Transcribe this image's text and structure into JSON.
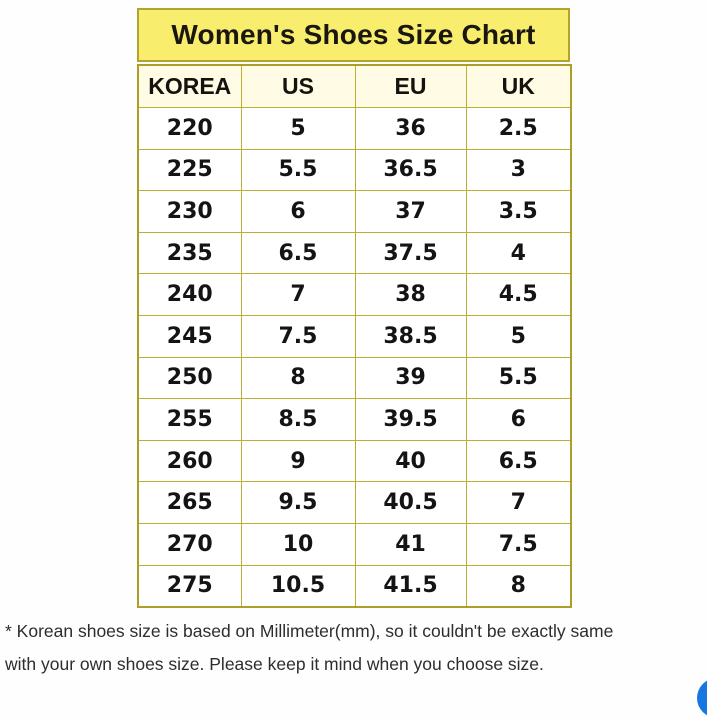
{
  "table": {
    "title": "Women's Shoes Size Chart",
    "columns": [
      "KOREA",
      "US",
      "EU",
      "UK"
    ],
    "rows": [
      [
        "220",
        "5",
        "36",
        "2.5"
      ],
      [
        "225",
        "5.5",
        "36.5",
        "3"
      ],
      [
        "230",
        "6",
        "37",
        "3.5"
      ],
      [
        "235",
        "6.5",
        "37.5",
        "4"
      ],
      [
        "240",
        "7",
        "38",
        "4.5"
      ],
      [
        "245",
        "7.5",
        "38.5",
        "5"
      ],
      [
        "250",
        "8",
        "39",
        "5.5"
      ],
      [
        "255",
        "8.5",
        "39.5",
        "6"
      ],
      [
        "260",
        "9",
        "40",
        "6.5"
      ],
      [
        "265",
        "9.5",
        "40.5",
        "7"
      ],
      [
        "270",
        "10",
        "41",
        "7.5"
      ],
      [
        "275",
        "10.5",
        "41.5",
        "8"
      ]
    ],
    "colors": {
      "title_background": "#f8ed6c",
      "header_background": "#fffbe5",
      "grid_border": "#bcb034",
      "outer_border": "#ab9f29"
    }
  },
  "footnote": {
    "line1": "* Korean shoes size is based on Millimeter(mm), so it couldn't be exactly same",
    "line2": "with your own shoes size. Please keep it mind when you choose size."
  },
  "fab": {
    "color": "#1677e0",
    "icon": "chat-bubble-icon"
  },
  "chart_data": {
    "type": "table",
    "title": "Women's Shoes Size Chart",
    "columns": [
      "KOREA",
      "US",
      "EU",
      "UK"
    ],
    "rows": [
      [
        "220",
        "5",
        "36",
        "2.5"
      ],
      [
        "225",
        "5.5",
        "36.5",
        "3"
      ],
      [
        "230",
        "6",
        "37",
        "3.5"
      ],
      [
        "235",
        "6.5",
        "37.5",
        "4"
      ],
      [
        "240",
        "7",
        "38",
        "4.5"
      ],
      [
        "245",
        "7.5",
        "38.5",
        "5"
      ],
      [
        "250",
        "8",
        "39",
        "5.5"
      ],
      [
        "255",
        "8.5",
        "39.5",
        "6"
      ],
      [
        "260",
        "9",
        "40",
        "6.5"
      ],
      [
        "265",
        "9.5",
        "40.5",
        "7"
      ],
      [
        "270",
        "10",
        "41",
        "7.5"
      ],
      [
        "275",
        "10.5",
        "41.5",
        "8"
      ]
    ],
    "notes": "KOREA sizes are millimeters; US 5-10.5, EU 36-41.5, UK 2.5-8 in 0.5 steps"
  }
}
